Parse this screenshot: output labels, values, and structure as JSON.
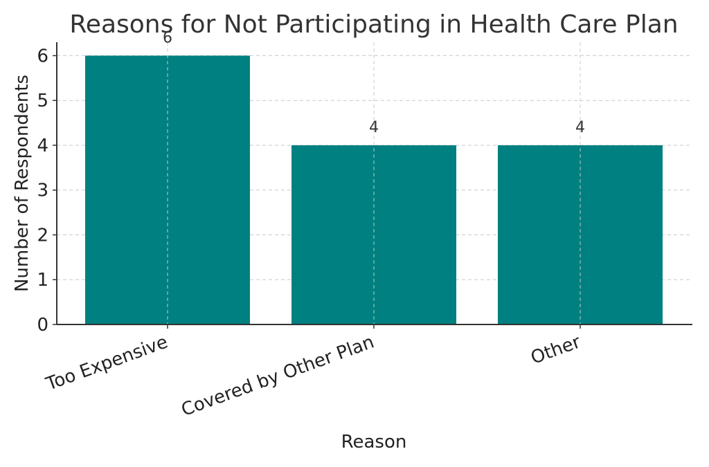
{
  "chart_data": {
    "type": "bar",
    "title": "Reasons for Not Participating in Health Care Plan",
    "xlabel": "Reason",
    "ylabel": "Number of Respondents",
    "categories": [
      "Too Expensive",
      "Covered by Other Plan",
      "Other"
    ],
    "values": [
      6,
      4,
      4
    ],
    "data_labels": [
      "6",
      "4",
      "4"
    ],
    "ylim": [
      0,
      6.3
    ],
    "yticks": [
      0,
      1,
      2,
      3,
      4,
      5,
      6
    ],
    "ytick_labels": [
      "0",
      "1",
      "2",
      "3",
      "4",
      "5",
      "6"
    ],
    "grid": true,
    "bar_color": "#008080",
    "grid_color": "#c8c8c8",
    "axis_color": "#333333",
    "text_color": "#333333"
  }
}
